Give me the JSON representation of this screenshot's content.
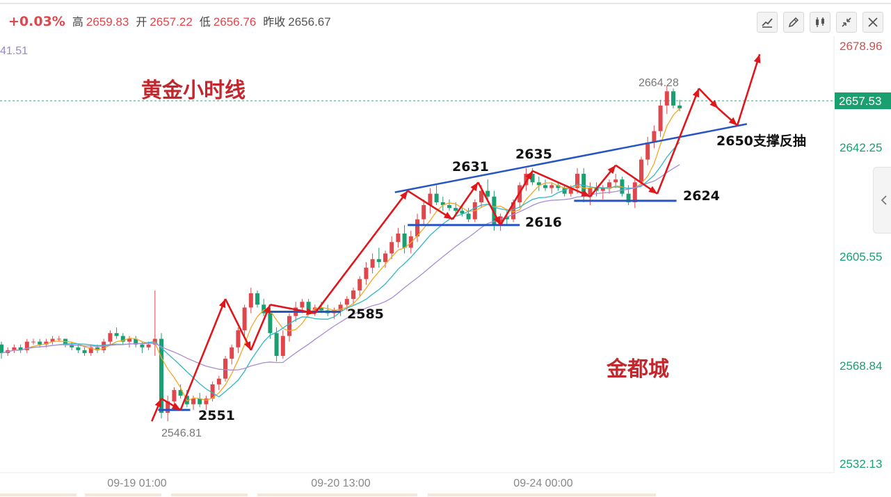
{
  "header": {
    "change_pct": "+0.03%",
    "high_label": "高",
    "high": "2659.83",
    "open_label": "开",
    "open": "2657.22",
    "low_label": "低",
    "low": "2656.76",
    "prev_close_label": "昨收",
    "prev_close": "2656.67"
  },
  "toolbar": {
    "buttons": [
      "line-tool-icon",
      "draw-pen-icon",
      "indicator-icon",
      "collapse-icon",
      "close-icon"
    ]
  },
  "side_tab": {
    "icon": "chevron-left-icon"
  },
  "colors": {
    "up": "#e0474c",
    "down": "#1a9f70",
    "ma_fast": "#f5a623",
    "ma_mid": "#2fb8c4",
    "ma_slow": "#a98bd6",
    "annotation_arrow": "#e0161b",
    "annotation_line": "#2755c4",
    "text_red": "#c1272d",
    "text_black": "#111111"
  },
  "chart_data": {
    "type": "candlestick",
    "title": "黄金小时线",
    "watermark": "金都城",
    "ma_value_partial": "41.51",
    "y_ticks": [
      "2678.96",
      "2642.25",
      "2605.55",
      "2568.84",
      "2532.13"
    ],
    "x_ticks": [
      "09-19 01:00",
      "09-20 13:00",
      "09-24 00:00"
    ],
    "last_price": "2657.53",
    "min_label": "2546.81",
    "max_label": "2664.28",
    "candles": [
      [
        2574,
        2575,
        2569,
        2571
      ],
      [
        2571,
        2573,
        2570,
        2572
      ],
      [
        2572,
        2574,
        2571,
        2573
      ],
      [
        2573,
        2574,
        2571,
        2572
      ],
      [
        2572,
        2576,
        2571,
        2575
      ],
      [
        2575,
        2576,
        2574,
        2575
      ],
      [
        2575,
        2576,
        2573,
        2574
      ],
      [
        2574,
        2576,
        2573,
        2575
      ],
      [
        2575,
        2577,
        2574,
        2576
      ],
      [
        2576,
        2577,
        2575,
        2576
      ],
      [
        2576,
        2576,
        2573,
        2574
      ],
      [
        2574,
        2575,
        2572,
        2573
      ],
      [
        2573,
        2574,
        2571,
        2572
      ],
      [
        2572,
        2573,
        2570,
        2571
      ],
      [
        2571,
        2574,
        2570,
        2573
      ],
      [
        2573,
        2574,
        2571,
        2572
      ],
      [
        2572,
        2576,
        2571,
        2575
      ],
      [
        2575,
        2579,
        2574,
        2578
      ],
      [
        2578,
        2580,
        2576,
        2577
      ],
      [
        2577,
        2578,
        2574,
        2575
      ],
      [
        2575,
        2577,
        2573,
        2576
      ],
      [
        2576,
        2577,
        2573,
        2574
      ],
      [
        2574,
        2575,
        2571,
        2573
      ],
      [
        2573,
        2575,
        2572,
        2574
      ],
      [
        2574,
        2593,
        2570,
        2576
      ],
      [
        2576,
        2578,
        2548,
        2550
      ],
      [
        2550,
        2556,
        2547,
        2554
      ],
      [
        2554,
        2559,
        2551,
        2558
      ],
      [
        2558,
        2560,
        2555,
        2556
      ],
      [
        2556,
        2558,
        2552,
        2553
      ],
      [
        2553,
        2556,
        2551,
        2555
      ],
      [
        2555,
        2557,
        2552,
        2553
      ],
      [
        2553,
        2556,
        2551,
        2555
      ],
      [
        2555,
        2561,
        2554,
        2560
      ],
      [
        2560,
        2563,
        2558,
        2562
      ],
      [
        2562,
        2570,
        2561,
        2569
      ],
      [
        2569,
        2574,
        2567,
        2573
      ],
      [
        2573,
        2580,
        2571,
        2579
      ],
      [
        2579,
        2588,
        2577,
        2587
      ],
      [
        2587,
        2594,
        2585,
        2592
      ],
      [
        2592,
        2593,
        2587,
        2588
      ],
      [
        2588,
        2590,
        2584,
        2585
      ],
      [
        2585,
        2587,
        2576,
        2578
      ],
      [
        2578,
        2580,
        2568,
        2570
      ],
      [
        2570,
        2579,
        2569,
        2577
      ],
      [
        2577,
        2585,
        2575,
        2584
      ],
      [
        2584,
        2589,
        2582,
        2587
      ],
      [
        2587,
        2590,
        2585,
        2589
      ],
      [
        2589,
        2590,
        2585,
        2586
      ],
      [
        2586,
        2588,
        2584,
        2587
      ],
      [
        2587,
        2589,
        2585,
        2586
      ],
      [
        2586,
        2588,
        2584,
        2585
      ],
      [
        2585,
        2587,
        2583,
        2586
      ],
      [
        2586,
        2589,
        2584,
        2588
      ],
      [
        2588,
        2591,
        2586,
        2590
      ],
      [
        2590,
        2594,
        2588,
        2593
      ],
      [
        2593,
        2598,
        2591,
        2597
      ],
      [
        2597,
        2603,
        2595,
        2601
      ],
      [
        2601,
        2606,
        2599,
        2604
      ],
      [
        2604,
        2608,
        2601,
        2603
      ],
      [
        2603,
        2607,
        2601,
        2606
      ],
      [
        2606,
        2612,
        2604,
        2610
      ],
      [
        2610,
        2615,
        2608,
        2613
      ],
      [
        2613,
        2616,
        2606,
        2608
      ],
      [
        2608,
        2614,
        2606,
        2612
      ],
      [
        2612,
        2620,
        2610,
        2618
      ],
      [
        2618,
        2625,
        2616,
        2623
      ],
      [
        2623,
        2629,
        2620,
        2627
      ],
      [
        2627,
        2630,
        2623,
        2624
      ],
      [
        2624,
        2626,
        2621,
        2623
      ],
      [
        2623,
        2625,
        2621,
        2622
      ],
      [
        2622,
        2624,
        2620,
        2621
      ],
      [
        2621,
        2623,
        2619,
        2620
      ],
      [
        2620,
        2622,
        2617,
        2618
      ],
      [
        2618,
        2625,
        2617,
        2624
      ],
      [
        2624,
        2630,
        2622,
        2628
      ],
      [
        2628,
        2632,
        2625,
        2626
      ],
      [
        2626,
        2628,
        2614,
        2616
      ],
      [
        2616,
        2620,
        2614,
        2619
      ],
      [
        2619,
        2621,
        2616,
        2618
      ],
      [
        2618,
        2625,
        2617,
        2624
      ],
      [
        2624,
        2631,
        2622,
        2630
      ],
      [
        2630,
        2636,
        2628,
        2634
      ],
      [
        2634,
        2636,
        2630,
        2631
      ],
      [
        2631,
        2633,
        2628,
        2630
      ],
      [
        2630,
        2632,
        2628,
        2629
      ],
      [
        2629,
        2631,
        2627,
        2630
      ],
      [
        2630,
        2631,
        2628,
        2629
      ],
      [
        2629,
        2630,
        2626,
        2627
      ],
      [
        2627,
        2630,
        2626,
        2629
      ],
      [
        2629,
        2636,
        2627,
        2634
      ],
      [
        2634,
        2636,
        2624,
        2626
      ],
      [
        2626,
        2631,
        2623,
        2629
      ],
      [
        2629,
        2631,
        2626,
        2628
      ],
      [
        2628,
        2630,
        2625,
        2629
      ],
      [
        2629,
        2632,
        2627,
        2631
      ],
      [
        2631,
        2634,
        2629,
        2632
      ],
      [
        2632,
        2633,
        2626,
        2627
      ],
      [
        2627,
        2630,
        2623,
        2624
      ],
      [
        2624,
        2632,
        2622,
        2631
      ],
      [
        2631,
        2640,
        2630,
        2639
      ],
      [
        2639,
        2647,
        2637,
        2645
      ],
      [
        2645,
        2651,
        2643,
        2649
      ],
      [
        2649,
        2660,
        2647,
        2658
      ],
      [
        2658,
        2665,
        2655,
        2663
      ],
      [
        2663,
        2664,
        2657,
        2658
      ],
      [
        2658,
        2660,
        2656,
        2657
      ]
    ]
  },
  "annotations": {
    "labels": [
      "2551",
      "2585",
      "2631",
      "2616",
      "2635",
      "2624",
      "2650支撑反抽"
    ]
  }
}
